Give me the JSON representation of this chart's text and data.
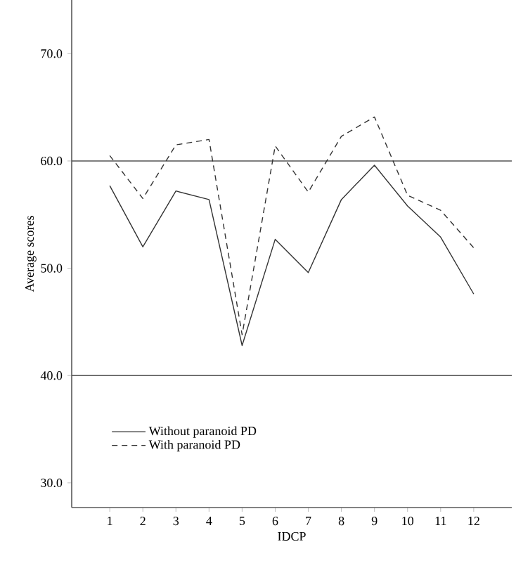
{
  "chart_data": {
    "type": "line",
    "xlabel": "IDCP",
    "ylabel": "Average scores",
    "x": [
      1,
      2,
      3,
      4,
      5,
      6,
      7,
      8,
      9,
      10,
      11,
      12
    ],
    "series": [
      {
        "name": "Without paranoid PD",
        "color": "#333333",
        "line_style": "solid",
        "values": [
          57.7,
          52.0,
          57.2,
          56.4,
          42.8,
          52.7,
          49.6,
          56.4,
          59.6,
          55.8,
          52.9,
          47.6
        ]
      },
      {
        "name": "With paranoid PD",
        "color": "#333333",
        "line_style": "dashed",
        "values": [
          60.5,
          56.5,
          61.5,
          62.0,
          43.8,
          61.4,
          57.1,
          62.3,
          64.1,
          56.8,
          55.4,
          51.9
        ]
      }
    ],
    "xlim": [
      -0.15,
      13.15
    ],
    "xticks": [
      1,
      2,
      3,
      4,
      5,
      6,
      7,
      8,
      9,
      10,
      11,
      12
    ],
    "ylim": [
      27.7,
      75.0
    ],
    "yticks": [
      {
        "value": 30,
        "label": "30.0"
      },
      {
        "value": 40,
        "label": "40.0"
      },
      {
        "value": 50,
        "label": "50.0"
      },
      {
        "value": 60,
        "label": "60.0"
      },
      {
        "value": 70,
        "label": "70.0"
      }
    ],
    "ref_lines": [
      {
        "axis": "y",
        "value": 40,
        "color": "#555555"
      },
      {
        "axis": "y",
        "value": 60,
        "color": "#555555"
      }
    ],
    "legend": "bottom left",
    "grid": false,
    "marker": "none"
  }
}
